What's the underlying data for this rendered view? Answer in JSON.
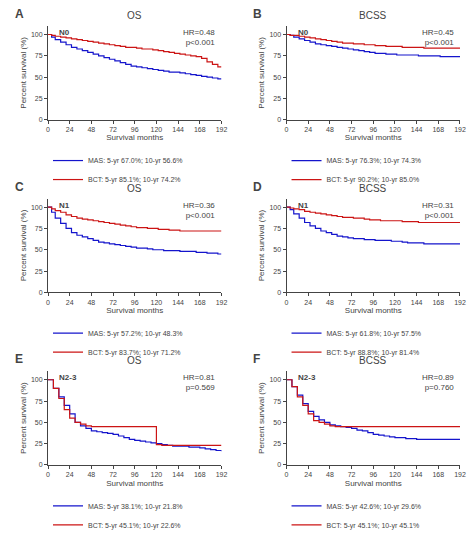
{
  "chart_data": [
    {
      "type": "step",
      "title": "OS",
      "panel_label": "A",
      "stage_label": "N0",
      "annotations": [
        "HR=0.48",
        "p<0.001"
      ],
      "xlabel": "Survival months",
      "ylabel": "Percent survival (%)",
      "xlim": [
        0,
        192
      ],
      "xticks": [
        0,
        24,
        48,
        72,
        96,
        120,
        144,
        168,
        192
      ],
      "ylim": [
        0,
        110
      ],
      "yticks": [
        0,
        25,
        50,
        75,
        100
      ],
      "grid": false,
      "legend": "bottom",
      "series": [
        {
          "name": "MAS: 5-yr 67.0%; 10-yr 56.6%",
          "color": "#1414cc",
          "x": [
            0,
            4,
            8,
            14,
            20,
            26,
            32,
            38,
            44,
            50,
            56,
            62,
            68,
            74,
            80,
            86,
            92,
            98,
            104,
            110,
            116,
            122,
            128,
            134,
            140,
            146,
            152,
            158,
            164,
            170,
            176,
            182,
            188,
            192
          ],
          "values": [
            100,
            97,
            94,
            91,
            88,
            85,
            83,
            81,
            79,
            77,
            75,
            73,
            71,
            69,
            67,
            65,
            63,
            62,
            61,
            60,
            59,
            58,
            57,
            56,
            56,
            55,
            54,
            53,
            52,
            51,
            50,
            49,
            48,
            48
          ]
        },
        {
          "name": "BCT: 5-yr 85.1%; 10-yr 74.2%",
          "color": "#cc1414",
          "x": [
            0,
            4,
            8,
            14,
            20,
            26,
            32,
            38,
            44,
            50,
            56,
            62,
            68,
            74,
            80,
            86,
            92,
            98,
            104,
            110,
            116,
            122,
            128,
            134,
            140,
            146,
            152,
            158,
            164,
            170,
            176,
            182,
            188,
            192
          ],
          "values": [
            100,
            99,
            98,
            97,
            96,
            95,
            94,
            93,
            92,
            91,
            90,
            89,
            88,
            87,
            86,
            85,
            85,
            84,
            83,
            83,
            82,
            81,
            80,
            79,
            78,
            77,
            76,
            75,
            74,
            72,
            68,
            65,
            62,
            62
          ]
        }
      ]
    },
    {
      "type": "step",
      "title": "BCSS",
      "panel_label": "B",
      "stage_label": "N0",
      "annotations": [
        "HR=0.45",
        "p<0.001"
      ],
      "xlabel": "Survival months",
      "ylabel": "Percent survival (%)",
      "xlim": [
        0,
        192
      ],
      "xticks": [
        0,
        24,
        48,
        72,
        96,
        120,
        144,
        168,
        192
      ],
      "ylim": [
        0,
        110
      ],
      "yticks": [
        0,
        25,
        50,
        75,
        100
      ],
      "grid": false,
      "legend": "bottom",
      "series": [
        {
          "name": "MAS: 5-yr 76.3%; 10-yr 74.3%",
          "color": "#1414cc",
          "x": [
            0,
            4,
            8,
            14,
            20,
            26,
            32,
            38,
            44,
            50,
            56,
            62,
            68,
            74,
            80,
            86,
            92,
            98,
            104,
            110,
            116,
            122,
            128,
            134,
            140,
            146,
            152,
            158,
            164,
            170,
            176,
            182,
            188,
            192
          ],
          "values": [
            100,
            99,
            97,
            95,
            93,
            91,
            89,
            88,
            87,
            86,
            85,
            84,
            83,
            82,
            81,
            80,
            79,
            78,
            78,
            77,
            77,
            76,
            76,
            76,
            76,
            75,
            75,
            75,
            75,
            74,
            74,
            74,
            74,
            74
          ]
        },
        {
          "name": "BCT: 5-yr 90.2%; 10-yr 85.0%",
          "color": "#cc1414",
          "x": [
            0,
            4,
            8,
            14,
            20,
            26,
            32,
            38,
            44,
            50,
            56,
            62,
            68,
            74,
            80,
            86,
            92,
            98,
            104,
            110,
            116,
            122,
            128,
            134,
            140,
            146,
            152,
            158,
            164,
            170,
            176,
            182,
            188,
            192
          ],
          "values": [
            100,
            99,
            99,
            98,
            97,
            96,
            95,
            94,
            93,
            92,
            91,
            90,
            90,
            89,
            89,
            88,
            88,
            87,
            87,
            86,
            86,
            86,
            85,
            85,
            85,
            85,
            84,
            84,
            84,
            84,
            84,
            84,
            84,
            84
          ]
        }
      ]
    },
    {
      "type": "step",
      "title": "OS",
      "panel_label": "C",
      "stage_label": "N1",
      "annotations": [
        "HR=0.36",
        "p<0.001"
      ],
      "xlabel": "Survival months",
      "ylabel": "Percent survival (%)",
      "xlim": [
        0,
        192
      ],
      "xticks": [
        0,
        24,
        48,
        72,
        96,
        120,
        144,
        168,
        192
      ],
      "ylim": [
        0,
        110
      ],
      "yticks": [
        0,
        25,
        50,
        75,
        100
      ],
      "grid": false,
      "legend": "bottom",
      "series": [
        {
          "name": "MAS: 5-yr 57.2%; 10-yr 48.3%",
          "color": "#1414cc",
          "x": [
            0,
            4,
            8,
            14,
            20,
            26,
            32,
            38,
            44,
            50,
            56,
            62,
            68,
            74,
            80,
            86,
            92,
            98,
            104,
            110,
            116,
            122,
            128,
            134,
            140,
            146,
            152,
            158,
            164,
            170,
            176,
            182,
            188,
            192
          ],
          "values": [
            100,
            94,
            87,
            81,
            75,
            70,
            67,
            65,
            63,
            61,
            59,
            58,
            57,
            56,
            55,
            54,
            53,
            52,
            52,
            51,
            50,
            50,
            49,
            49,
            49,
            48,
            48,
            48,
            47,
            47,
            46,
            46,
            45,
            45
          ]
        },
        {
          "name": "BCT: 5-yr 83.7%; 10-yr 71.2%",
          "color": "#cc1414",
          "x": [
            0,
            4,
            8,
            14,
            20,
            26,
            32,
            38,
            44,
            50,
            56,
            62,
            68,
            74,
            80,
            86,
            92,
            98,
            104,
            110,
            116,
            122,
            128,
            134,
            140,
            146,
            152,
            158,
            164,
            170,
            176,
            182,
            188,
            192
          ],
          "values": [
            100,
            98,
            96,
            94,
            91,
            89,
            87,
            86,
            85,
            84,
            83,
            82,
            81,
            80,
            79,
            78,
            77,
            76,
            76,
            75,
            75,
            74,
            74,
            73,
            73,
            72,
            72,
            72,
            72,
            72,
            72,
            72,
            72,
            72
          ]
        }
      ]
    },
    {
      "type": "step",
      "title": "BCSS",
      "panel_label": "D",
      "stage_label": "N1",
      "annotations": [
        "HR=0.31",
        "p<0.001"
      ],
      "xlabel": "Survival months",
      "ylabel": "Percent survival (%)",
      "xlim": [
        0,
        192
      ],
      "xticks": [
        0,
        24,
        48,
        72,
        96,
        120,
        144,
        168,
        192
      ],
      "ylim": [
        0,
        110
      ],
      "yticks": [
        0,
        25,
        50,
        75,
        100
      ],
      "grid": false,
      "legend": "bottom",
      "series": [
        {
          "name": "MAS: 5-yr 61.8%; 10-yr 57.5%",
          "color": "#1414cc",
          "x": [
            0,
            4,
            8,
            14,
            20,
            26,
            32,
            38,
            44,
            50,
            56,
            62,
            68,
            74,
            80,
            86,
            92,
            98,
            104,
            110,
            116,
            122,
            128,
            134,
            140,
            146,
            152,
            158,
            164,
            170,
            176,
            182,
            188,
            192
          ],
          "values": [
            100,
            97,
            92,
            87,
            82,
            78,
            75,
            72,
            70,
            68,
            66,
            65,
            64,
            63,
            63,
            62,
            62,
            61,
            61,
            61,
            60,
            60,
            59,
            58,
            58,
            58,
            57,
            57,
            57,
            57,
            57,
            57,
            57,
            57
          ]
        },
        {
          "name": "BCT: 5-yr 88.8%; 10-yr 81.4%",
          "color": "#cc1414",
          "x": [
            0,
            4,
            8,
            14,
            20,
            26,
            32,
            38,
            44,
            50,
            56,
            62,
            68,
            74,
            80,
            86,
            92,
            98,
            104,
            110,
            116,
            122,
            128,
            134,
            140,
            146,
            152,
            158,
            164,
            170,
            176,
            182,
            188,
            192
          ],
          "values": [
            100,
            99,
            98,
            97,
            95,
            94,
            93,
            92,
            91,
            90,
            89,
            88,
            88,
            87,
            87,
            86,
            85,
            85,
            84,
            84,
            84,
            84,
            83,
            83,
            83,
            82,
            82,
            82,
            82,
            82,
            82,
            82,
            82,
            82
          ]
        }
      ]
    },
    {
      "type": "step",
      "title": "OS",
      "panel_label": "E",
      "stage_label": "N2-3",
      "annotations": [
        "HR=0.81",
        "p=0.569"
      ],
      "xlabel": "Survival months",
      "ylabel": "Percent survival (%)",
      "xlim": [
        0,
        192
      ],
      "xticks": [
        0,
        24,
        48,
        72,
        96,
        120,
        144,
        168,
        192
      ],
      "ylim": [
        0,
        110
      ],
      "yticks": [
        0,
        25,
        50,
        75,
        100
      ],
      "grid": false,
      "legend": "bottom",
      "series": [
        {
          "name": "MAS: 5-yr 38.1%; 10-yr 21.8%",
          "color": "#1414cc",
          "x": [
            0,
            6,
            12,
            18,
            24,
            30,
            36,
            42,
            48,
            54,
            60,
            66,
            72,
            78,
            84,
            90,
            96,
            102,
            108,
            114,
            120,
            126,
            132,
            138,
            144,
            150,
            156,
            162,
            168,
            174,
            180,
            186,
            192
          ],
          "values": [
            100,
            90,
            80,
            70,
            60,
            50,
            46,
            43,
            40,
            39,
            38,
            37,
            36,
            34,
            32,
            30,
            29,
            28,
            27,
            26,
            25,
            24,
            23,
            22,
            22,
            22,
            21,
            21,
            20,
            19,
            18,
            17,
            16
          ]
        },
        {
          "name": "BCT: 5-yr 45.1%; 10-yr 22.6%",
          "color": "#cc1414",
          "x": [
            0,
            6,
            12,
            18,
            24,
            30,
            36,
            42,
            48,
            54,
            60,
            66,
            72,
            78,
            84,
            90,
            96,
            102,
            108,
            114,
            120,
            126,
            132,
            138,
            144,
            150,
            156,
            162,
            168,
            174,
            180,
            186,
            192
          ],
          "values": [
            100,
            90,
            78,
            65,
            55,
            50,
            48,
            46,
            45,
            45,
            45,
            45,
            45,
            45,
            45,
            45,
            45,
            45,
            45,
            45,
            24,
            23,
            23,
            23,
            23,
            23,
            23,
            23,
            23,
            23,
            23,
            23,
            23
          ]
        }
      ]
    },
    {
      "type": "step",
      "title": "BCSS",
      "panel_label": "F",
      "stage_label": "N2-3",
      "annotations": [
        "HR=0.89",
        "p=0.760"
      ],
      "xlabel": "Survival months",
      "ylabel": "Percent survival (%)",
      "xlim": [
        0,
        192
      ],
      "xticks": [
        0,
        24,
        48,
        72,
        96,
        120,
        144,
        168,
        192
      ],
      "ylim": [
        0,
        110
      ],
      "yticks": [
        0,
        25,
        50,
        75,
        100
      ],
      "grid": false,
      "legend": "bottom",
      "series": [
        {
          "name": "MAS: 5-yr 42.6%; 10-yr 29.6%",
          "color": "#1414cc",
          "x": [
            0,
            6,
            12,
            18,
            24,
            30,
            36,
            42,
            48,
            54,
            60,
            66,
            72,
            78,
            84,
            90,
            96,
            102,
            108,
            114,
            120,
            126,
            132,
            138,
            144,
            150,
            156,
            162,
            168,
            174,
            180,
            186,
            192
          ],
          "values": [
            100,
            92,
            82,
            72,
            63,
            57,
            53,
            50,
            47,
            46,
            45,
            44,
            43,
            41,
            40,
            38,
            36,
            35,
            34,
            33,
            32,
            32,
            31,
            31,
            30,
            30,
            30,
            30,
            30,
            30,
            30,
            30,
            30
          ]
        },
        {
          "name": "BCT: 5-yr 45.1%; 10-yr 45.1%",
          "color": "#cc1414",
          "x": [
            0,
            6,
            12,
            18,
            24,
            30,
            36,
            42,
            48,
            54,
            60,
            66,
            72,
            78,
            84,
            90,
            96,
            102,
            108,
            114,
            120,
            126,
            132,
            138,
            144,
            150,
            156,
            162,
            168,
            174,
            180,
            186,
            192
          ],
          "values": [
            100,
            92,
            80,
            70,
            60,
            52,
            50,
            48,
            46,
            45,
            45,
            45,
            45,
            45,
            45,
            45,
            45,
            45,
            45,
            45,
            45,
            45,
            45,
            45,
            45,
            45,
            45,
            45,
            45,
            45,
            45,
            45,
            45
          ]
        }
      ]
    }
  ]
}
